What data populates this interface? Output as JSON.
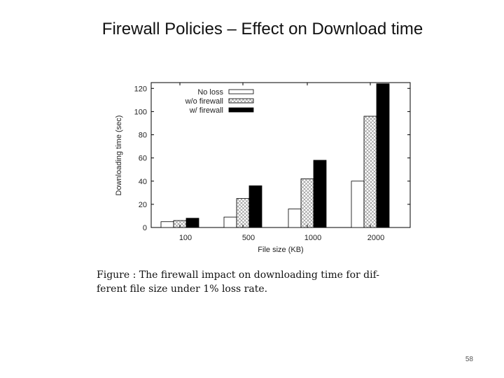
{
  "slide": {
    "title": "Firewall Policies – Effect on Download time",
    "page_number": "58"
  },
  "caption": {
    "line1": "Figure   : The firewall impact on downloading time for dif-",
    "line2": "ferent file size under 1% loss rate."
  },
  "chart_data": {
    "type": "bar",
    "title": "",
    "xlabel": "File size (KB)",
    "ylabel": "Downloading time (sec)",
    "categories": [
      "100",
      "500",
      "1000",
      "2000"
    ],
    "ylim": [
      0,
      125
    ],
    "yticks": [
      0,
      20,
      40,
      60,
      80,
      100,
      120
    ],
    "grid": false,
    "legend": "top-left",
    "series": [
      {
        "name": "No loss",
        "values": [
          5,
          9,
          16,
          40
        ],
        "fill": "white"
      },
      {
        "name": "w/o firewall",
        "values": [
          6,
          25,
          42,
          96
        ],
        "fill": "crosshatch"
      },
      {
        "name": "w/ firewall",
        "values": [
          8,
          36,
          58,
          124
        ],
        "fill": "black"
      }
    ]
  }
}
